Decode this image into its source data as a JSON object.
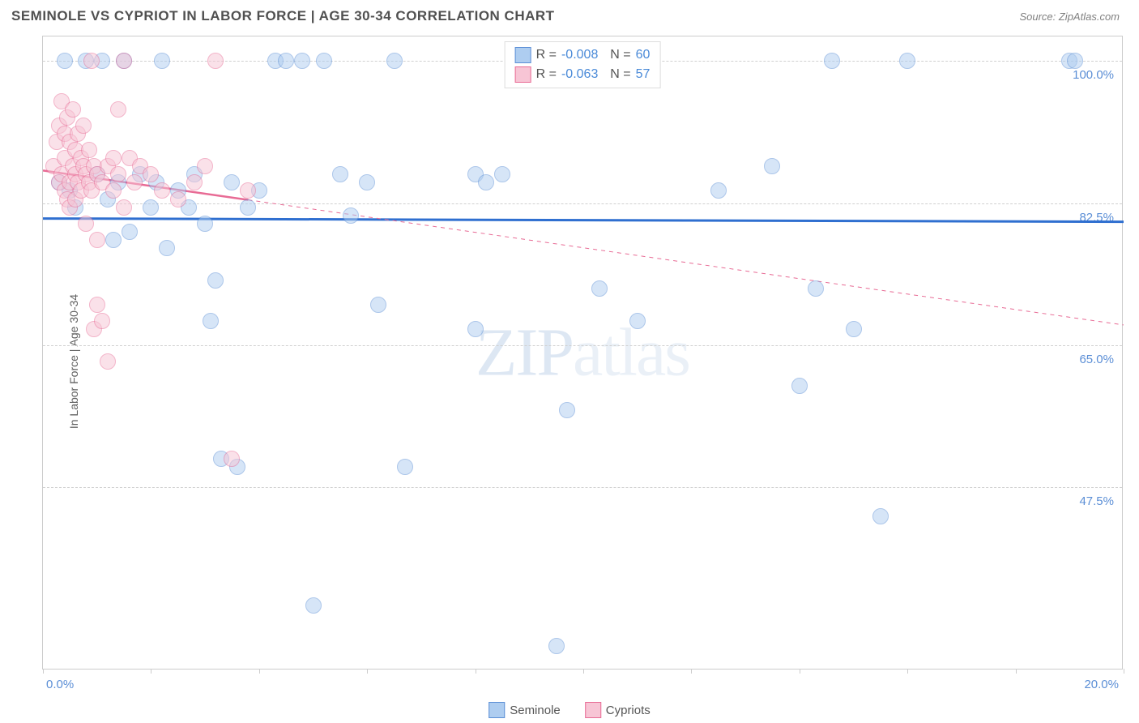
{
  "title": "SEMINOLE VS CYPRIOT IN LABOR FORCE | AGE 30-34 CORRELATION CHART",
  "source_label": "Source: ZipAtlas.com",
  "y_axis_label": "In Labor Force | Age 30-34",
  "watermark": "ZIPatlas",
  "chart": {
    "type": "scatter",
    "background_color": "#ffffff",
    "border_color": "#cccccc",
    "grid_color": "#d0d0d0",
    "xlim": [
      0,
      20
    ],
    "ylim": [
      25,
      103
    ],
    "x_ticks": [
      0,
      2,
      4,
      6,
      8,
      10,
      12,
      14,
      16,
      18,
      20
    ],
    "y_grid": [
      {
        "value": 100.0,
        "label": "100.0%"
      },
      {
        "value": 82.5,
        "label": "82.5%"
      },
      {
        "value": 65.0,
        "label": "65.0%"
      },
      {
        "value": 47.5,
        "label": "47.5%"
      }
    ],
    "x_axis_labels": {
      "left": "0.0%",
      "right": "20.0%"
    },
    "marker_radius": 10,
    "marker_opacity": 0.5,
    "series": [
      {
        "name": "Seminole",
        "fill": "#aecdf0",
        "stroke": "#5c8fd6",
        "r_value": "-0.008",
        "n_value": "60",
        "trend": {
          "y_at_x0": 80.6,
          "y_at_x20": 80.2,
          "color": "#2f6fd0",
          "width": 3,
          "solid_until_x": 20
        },
        "points": [
          [
            0.3,
            85
          ],
          [
            0.4,
            100
          ],
          [
            0.5,
            84
          ],
          [
            0.6,
            82
          ],
          [
            0.8,
            100
          ],
          [
            1.0,
            86
          ],
          [
            1.1,
            100
          ],
          [
            1.2,
            83
          ],
          [
            1.3,
            78
          ],
          [
            1.4,
            85
          ],
          [
            1.5,
            100
          ],
          [
            1.6,
            79
          ],
          [
            1.8,
            86
          ],
          [
            2.0,
            82
          ],
          [
            2.1,
            85
          ],
          [
            2.2,
            100
          ],
          [
            2.3,
            77
          ],
          [
            2.5,
            84
          ],
          [
            2.7,
            82
          ],
          [
            2.8,
            86
          ],
          [
            3.0,
            80
          ],
          [
            3.1,
            68
          ],
          [
            3.2,
            73
          ],
          [
            3.3,
            51
          ],
          [
            3.5,
            85
          ],
          [
            3.6,
            50
          ],
          [
            3.8,
            82
          ],
          [
            4.0,
            84
          ],
          [
            4.3,
            100
          ],
          [
            4.5,
            100
          ],
          [
            4.8,
            100
          ],
          [
            5.0,
            33
          ],
          [
            5.2,
            100
          ],
          [
            5.5,
            86
          ],
          [
            5.7,
            81
          ],
          [
            6.0,
            85
          ],
          [
            6.2,
            70
          ],
          [
            6.5,
            100
          ],
          [
            6.7,
            50
          ],
          [
            8.0,
            86
          ],
          [
            8.0,
            67
          ],
          [
            8.2,
            85
          ],
          [
            8.5,
            86
          ],
          [
            8.8,
            100
          ],
          [
            9.5,
            28
          ],
          [
            9.7,
            57
          ],
          [
            10.3,
            72
          ],
          [
            10.5,
            100
          ],
          [
            11.0,
            68
          ],
          [
            11.2,
            100
          ],
          [
            12.5,
            84
          ],
          [
            13.5,
            87
          ],
          [
            14.0,
            60
          ],
          [
            14.3,
            72
          ],
          [
            14.6,
            100
          ],
          [
            15.0,
            67
          ],
          [
            15.5,
            44
          ],
          [
            16.0,
            100
          ],
          [
            19.0,
            100
          ],
          [
            19.1,
            100
          ]
        ]
      },
      {
        "name": "Cypriots",
        "fill": "#f7c5d5",
        "stroke": "#e86b95",
        "r_value": "-0.063",
        "n_value": "57",
        "trend": {
          "y_at_x0": 86.5,
          "y_at_x20": 67.5,
          "color": "#e86b95",
          "width": 2.5,
          "solid_until_x": 3.8
        },
        "points": [
          [
            0.2,
            87
          ],
          [
            0.25,
            90
          ],
          [
            0.3,
            85
          ],
          [
            0.3,
            92
          ],
          [
            0.35,
            95
          ],
          [
            0.35,
            86
          ],
          [
            0.4,
            84
          ],
          [
            0.4,
            88
          ],
          [
            0.4,
            91
          ],
          [
            0.45,
            83
          ],
          [
            0.45,
            93
          ],
          [
            0.5,
            85
          ],
          [
            0.5,
            90
          ],
          [
            0.5,
            82
          ],
          [
            0.55,
            87
          ],
          [
            0.55,
            94
          ],
          [
            0.6,
            86
          ],
          [
            0.6,
            89
          ],
          [
            0.6,
            83
          ],
          [
            0.65,
            91
          ],
          [
            0.65,
            85
          ],
          [
            0.7,
            88
          ],
          [
            0.7,
            84
          ],
          [
            0.75,
            87
          ],
          [
            0.75,
            92
          ],
          [
            0.8,
            86
          ],
          [
            0.8,
            80
          ],
          [
            0.85,
            85
          ],
          [
            0.85,
            89
          ],
          [
            0.9,
            84
          ],
          [
            0.9,
            100
          ],
          [
            0.95,
            87
          ],
          [
            0.95,
            67
          ],
          [
            1.0,
            86
          ],
          [
            1.0,
            78
          ],
          [
            1.0,
            70
          ],
          [
            1.1,
            85
          ],
          [
            1.1,
            68
          ],
          [
            1.2,
            63
          ],
          [
            1.2,
            87
          ],
          [
            1.3,
            88
          ],
          [
            1.3,
            84
          ],
          [
            1.4,
            86
          ],
          [
            1.4,
            94
          ],
          [
            1.5,
            100
          ],
          [
            1.5,
            82
          ],
          [
            1.6,
            88
          ],
          [
            1.7,
            85
          ],
          [
            1.8,
            87
          ],
          [
            2.0,
            86
          ],
          [
            2.2,
            84
          ],
          [
            2.5,
            83
          ],
          [
            2.8,
            85
          ],
          [
            3.0,
            87
          ],
          [
            3.2,
            100
          ],
          [
            3.5,
            51
          ],
          [
            3.8,
            84
          ]
        ]
      }
    ]
  },
  "bottom_legend": [
    {
      "label": "Seminole",
      "fill": "#aecdf0",
      "stroke": "#5c8fd6"
    },
    {
      "label": "Cypriots",
      "fill": "#f7c5d5",
      "stroke": "#e86b95"
    }
  ]
}
